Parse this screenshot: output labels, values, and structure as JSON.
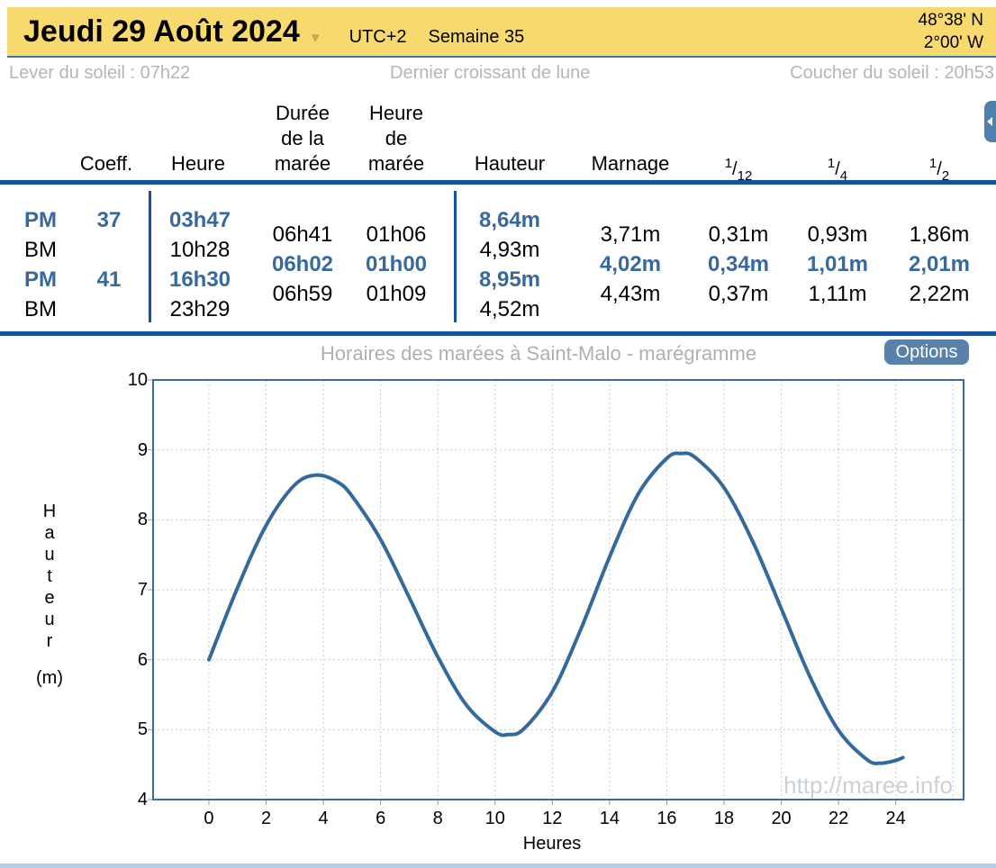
{
  "header": {
    "date": "Jeudi 29 Août 2024",
    "dropdown_icon": "▼",
    "timezone": "UTC+2",
    "week": "Semaine 35",
    "latitude": "48°38' N",
    "longitude": "2°00' W",
    "bar_color": "#f8d96d"
  },
  "sun": {
    "sunrise": "Lever du soleil : 07h22",
    "moon_phase": "Dernier croissant de lune",
    "sunset": "Coucher du soleil : 20h53"
  },
  "tide_table": {
    "headers": {
      "coeff": "Coeff.",
      "heure": "Heure",
      "duree": "Durée de la marée",
      "heure_maree": "Heure de marée",
      "hauteur": "Hauteur",
      "marnage": "Marnage",
      "f12": {
        "sup": "1",
        "sub": "12"
      },
      "f4": {
        "sup": "1",
        "sub": "4"
      },
      "f2": {
        "sup": "1",
        "sub": "2"
      }
    },
    "rows": [
      {
        "type": "PM",
        "coeff": "37",
        "heure": "03h47",
        "hauteur": "8,64m",
        "highlight": true
      },
      {
        "type": "BM",
        "coeff": "",
        "heure": "10h28",
        "hauteur": "4,93m",
        "highlight": false
      },
      {
        "type": "PM",
        "coeff": "41",
        "heure": "16h30",
        "hauteur": "8,95m",
        "highlight": true
      },
      {
        "type": "BM",
        "coeff": "",
        "heure": "23h29",
        "hauteur": "4,52m",
        "highlight": false
      }
    ],
    "mid_rows": [
      {
        "duree": "06h41",
        "heure_maree": "01h06",
        "marnage": "3,71m",
        "douzieme": "0,31m",
        "quart": "0,93m",
        "demi": "1,86m",
        "highlight": false
      },
      {
        "duree": "06h02",
        "heure_maree": "01h00",
        "marnage": "4,02m",
        "douzieme": "0,34m",
        "quart": "1,01m",
        "demi": "2,01m",
        "highlight": true
      },
      {
        "duree": "06h59",
        "heure_maree": "01h09",
        "marnage": "4,43m",
        "douzieme": "0,37m",
        "quart": "1,11m",
        "demi": "2,22m",
        "highlight": false
      }
    ],
    "accent_color": "#36699e",
    "divider_color": "#1552a0"
  },
  "chart": {
    "title": "Horaires des marées à Saint-Malo - marégramme",
    "options_label": "Options",
    "watermark": "http://maree.info",
    "ylabel_vertical": "Hauteur",
    "ylabel_unit": "(m)",
    "xlabel": "Heures",
    "side_tab_icon": "chevron-left-icon"
  },
  "chart_data": {
    "type": "line",
    "title": "Horaires des marées à Saint-Malo - marégramme",
    "xlabel": "Heures",
    "ylabel": "Hauteur (m)",
    "xlim": [
      -1.95,
      26.37
    ],
    "ylim": [
      4,
      10
    ],
    "x_ticks": [
      0,
      2,
      4,
      6,
      8,
      10,
      12,
      14,
      16,
      18,
      20,
      22,
      24
    ],
    "grid_x_extra": [
      26
    ],
    "y_ticks": [
      10,
      9,
      8,
      7,
      6,
      5,
      4
    ],
    "grid": true,
    "line_color": "#34699c",
    "series": [
      {
        "name": "Hauteur de la marée (m)",
        "points": [
          [
            0,
            6.0
          ],
          [
            1,
            7.03
          ],
          [
            2,
            7.92
          ],
          [
            3,
            8.5
          ],
          [
            3.78,
            8.64
          ],
          [
            4.5,
            8.54
          ],
          [
            5,
            8.34
          ],
          [
            6,
            7.72
          ],
          [
            7,
            6.89
          ],
          [
            8,
            6.04
          ],
          [
            9,
            5.35
          ],
          [
            10,
            4.97
          ],
          [
            10.47,
            4.93
          ],
          [
            11,
            5.01
          ],
          [
            12,
            5.54
          ],
          [
            13,
            6.44
          ],
          [
            14,
            7.47
          ],
          [
            15,
            8.37
          ],
          [
            16,
            8.88
          ],
          [
            16.5,
            8.95
          ],
          [
            17,
            8.89
          ],
          [
            18,
            8.46
          ],
          [
            19,
            7.69
          ],
          [
            20,
            6.73
          ],
          [
            21,
            5.76
          ],
          [
            22,
            4.99
          ],
          [
            23,
            4.57
          ],
          [
            23.48,
            4.52
          ],
          [
            24,
            4.56
          ],
          [
            24.25,
            4.6
          ]
        ]
      }
    ],
    "extremes": [
      {
        "type": "PM",
        "time": "03h47",
        "height_m": 8.64
      },
      {
        "type": "BM",
        "time": "10h28",
        "height_m": 4.93
      },
      {
        "type": "PM",
        "time": "16h30",
        "height_m": 8.95
      },
      {
        "type": "BM",
        "time": "23h29",
        "height_m": 4.52
      }
    ]
  }
}
